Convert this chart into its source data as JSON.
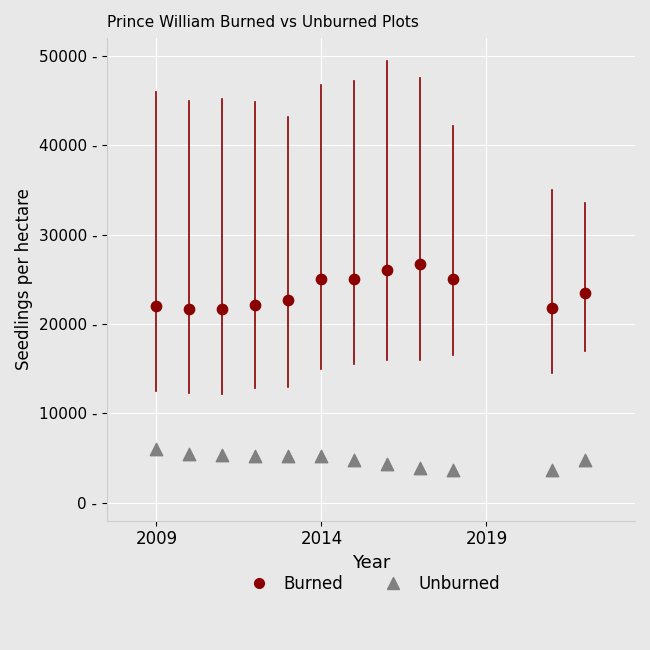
{
  "title": "Prince William Burned vs Unburned Plots",
  "xlabel": "Year",
  "ylabel": "Seedlings per hectare",
  "background_color": "#e8e8e8",
  "plot_bg_color": "#e8e8e8",
  "burned_years": [
    2009,
    2010,
    2011,
    2012,
    2013,
    2014,
    2015,
    2016,
    2017,
    2018,
    2021,
    2022
  ],
  "burned_means": [
    22000,
    21700,
    21700,
    22100,
    22700,
    25000,
    25000,
    26000,
    26700,
    25000,
    21800,
    23500
  ],
  "burned_lower": [
    12500,
    12300,
    12200,
    12800,
    13000,
    15000,
    15500,
    16000,
    16000,
    16500,
    14500,
    17000
  ],
  "burned_upper": [
    46000,
    45000,
    45200,
    44800,
    43200,
    46800,
    47200,
    49400,
    47500,
    42200,
    35000,
    33500
  ],
  "burned_color": "#8B0000",
  "burned_label": "Burned",
  "unburned_years": [
    2009,
    2010,
    2011,
    2012,
    2013,
    2014,
    2015,
    2016,
    2017,
    2018,
    2021,
    2022
  ],
  "unburned_means": [
    6000,
    5500,
    5400,
    5200,
    5200,
    5200,
    4800,
    4400,
    3900,
    3700,
    3700,
    4800
  ],
  "unburned_lower": [
    5700,
    5200,
    5000,
    4900,
    4900,
    4900,
    4500,
    4000,
    3600,
    3400,
    3400,
    4400
  ],
  "unburned_upper": [
    6300,
    5800,
    5800,
    5500,
    5500,
    5500,
    5100,
    4800,
    4200,
    4000,
    4000,
    5200
  ],
  "unburned_color": "#808080",
  "unburned_label": "Unburned",
  "ylim": [
    -2000,
    52000
  ],
  "yticks": [
    0,
    10000,
    20000,
    30000,
    40000,
    50000
  ],
  "ytick_labels": [
    "0 -",
    "10000 -",
    "20000 -",
    "30000 -",
    "40000 -",
    "50000 -"
  ],
  "xticks": [
    2009,
    2014,
    2019
  ],
  "figsize": [
    6.5,
    6.5
  ],
  "dpi": 100
}
